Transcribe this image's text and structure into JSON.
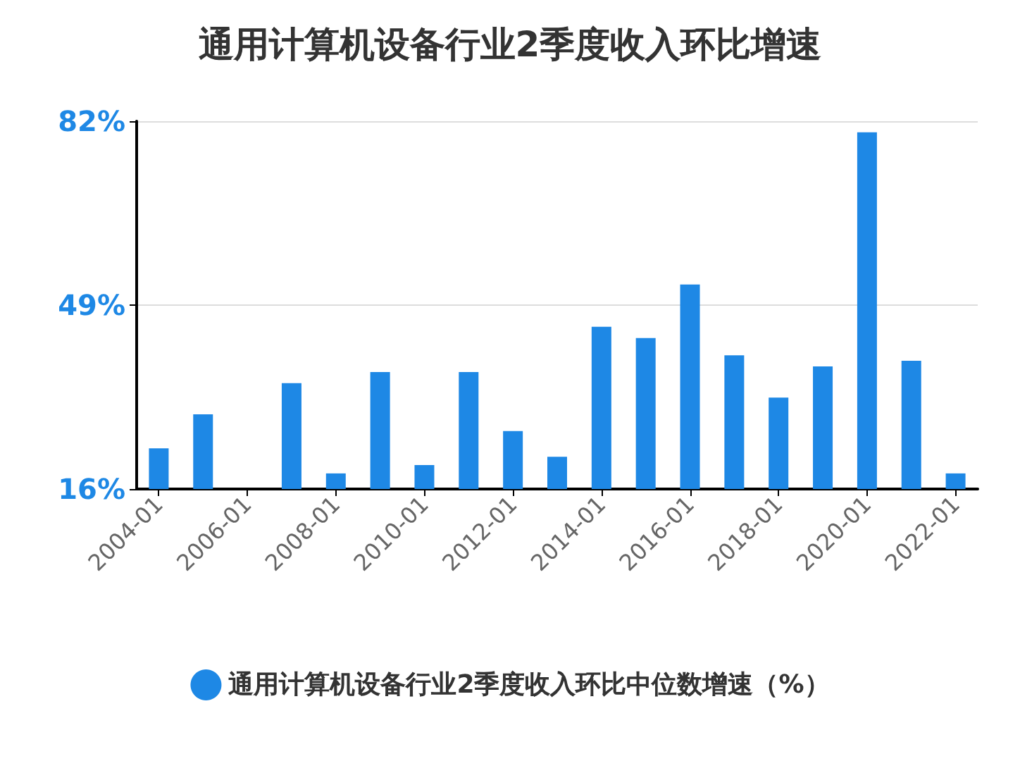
{
  "chart_data": {
    "type": "bar",
    "title": "通用计算机设备行业2季度收入环比增速",
    "categories": [
      "2004-01",
      null,
      "2006-01",
      null,
      "2008-01",
      null,
      "2010-01",
      null,
      "2012-01",
      null,
      "2014-01",
      null,
      "2016-01",
      null,
      "2018-01",
      null,
      "2020-01",
      null,
      "2022-01"
    ],
    "series": [
      {
        "name": "通用计算机设备行业2季度收入环比中位数增速（%）",
        "color": "#1e88e5",
        "values": [
          23.3,
          29.4,
          null,
          35.0,
          18.8,
          37.0,
          20.3,
          37.0,
          26.4,
          21.8,
          45.1,
          43.1,
          52.7,
          40.0,
          32.4,
          38.0,
          80.0,
          39.0,
          18.8
        ]
      }
    ],
    "ylim": [
      16,
      82
    ],
    "yticks": [
      {
        "value": 16,
        "label": "16%"
      },
      {
        "value": 49,
        "label": "49%"
      },
      {
        "value": 82,
        "label": "82%"
      }
    ],
    "grid": "y",
    "legend": "bottom"
  }
}
